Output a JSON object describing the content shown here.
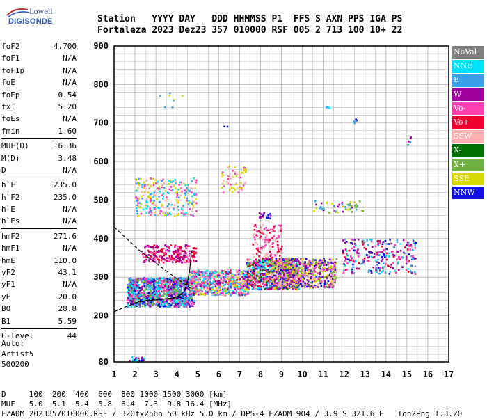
{
  "logo": {
    "top": "Lowell",
    "bottom": "DIGISONDE"
  },
  "header": {
    "line1": "Station   YYYY DAY   DDD HHMMSS P1  FFS S AXN PPS IGA PS",
    "line2": "Fortaleza 2023 Dez23 357 010000 RSF 005 2 713 100 10+ 22"
  },
  "params": {
    "group1": [
      {
        "name": "foF2",
        "value": "4.700"
      },
      {
        "name": "foF1",
        "value": "N/A"
      },
      {
        "name": "foF1p",
        "value": "N/A"
      },
      {
        "name": "foE",
        "value": "N/A"
      },
      {
        "name": "foEp",
        "value": "0.54"
      },
      {
        "name": "fxI",
        "value": "5.20"
      },
      {
        "name": "foEs",
        "value": "N/A"
      },
      {
        "name": "fmin",
        "value": "1.60"
      }
    ],
    "group2": [
      {
        "name": "MUF(D)",
        "value": "16.36"
      },
      {
        "name": "M(D)",
        "value": "3.48"
      },
      {
        "name": "D",
        "value": "N/A"
      }
    ],
    "group3": [
      {
        "name": "h`F",
        "value": "235.0"
      },
      {
        "name": "h`F2",
        "value": "235.0"
      },
      {
        "name": "h`E",
        "value": "N/A"
      },
      {
        "name": "h`Es",
        "value": "N/A"
      }
    ],
    "group4": [
      {
        "name": "hmF2",
        "value": "271.6"
      },
      {
        "name": "hmF1",
        "value": "N/A"
      },
      {
        "name": "hmE",
        "value": "110.0"
      },
      {
        "name": "yF2",
        "value": "43.1"
      },
      {
        "name": "yF1",
        "value": "N/A"
      },
      {
        "name": "yE",
        "value": "20.0"
      },
      {
        "name": "B0",
        "value": "28.8"
      },
      {
        "name": "B1",
        "value": "5.59"
      }
    ],
    "group5": [
      {
        "name": "C-level",
        "value": "44"
      }
    ]
  },
  "auto": {
    "line1": "Auto:",
    "line2": "Artist5",
    "line3": "500200"
  },
  "footer": {
    "line1": "D     100  200  400  600  800 1000 1500 3000 [km]",
    "line2": "MUF   5.0  5.1  5.4  5.8  6.4  7.3  9.8 16.4 [MHz]",
    "line3": "FZA0M_2023357010000.RSF / 320fx256h 50 kHz 5.0 km / DPS-4 FZA0M 904 / 3.9 S 321.6 E   Ion2Png 1.3.20"
  },
  "legend": [
    {
      "label": "NoVal",
      "color": "#808080"
    },
    {
      "label": "NNE",
      "color": "#00e0ff"
    },
    {
      "label": "E",
      "color": "#3aa0e8"
    },
    {
      "label": "W",
      "color": "#a000a0"
    },
    {
      "label": "Vo-",
      "color": "#ff40b0"
    },
    {
      "label": "Vo+",
      "color": "#f00030"
    },
    {
      "label": "SSW",
      "color": "#ffb0b0"
    },
    {
      "label": "X-",
      "color": "#007000"
    },
    {
      "label": "X+",
      "color": "#70b040"
    },
    {
      "label": "SSE",
      "color": "#d8d800"
    },
    {
      "label": "NNW",
      "color": "#1010e0"
    }
  ],
  "chart_data": {
    "type": "scatter",
    "xlim": [
      1,
      17
    ],
    "ylim": [
      80,
      900
    ],
    "x_ticks": [
      "1",
      "2",
      "3",
      "4",
      "5",
      "6",
      "7",
      "8",
      "9",
      "10",
      "11",
      "12",
      "13",
      "14",
      "15",
      "16",
      "17"
    ],
    "y_ticks": [
      {
        "v": 900,
        "t": "900"
      },
      {
        "v": 800,
        "t": "800"
      },
      {
        "v": 700,
        "t": "700"
      },
      {
        "v": 600,
        "t": "600"
      },
      {
        "v": 500,
        "t": "500"
      },
      {
        "v": 400,
        "t": "400"
      },
      {
        "v": 300,
        "t": "300"
      },
      {
        "v": 200,
        "t": "200"
      },
      {
        "v": 80,
        "t": "80"
      }
    ],
    "grid": true,
    "clusters": [
      {
        "x": [
          1.7,
          2.4
        ],
        "y": [
          81,
          96
        ],
        "n": 25,
        "colors": [
          "#a000a0",
          "#1010e0",
          "#00e0ff"
        ]
      },
      {
        "x": [
          1.6,
          4.8
        ],
        "y": [
          225,
          300
        ],
        "n": 1100,
        "colors": [
          "#3aa0e8",
          "#00e0ff",
          "#a000a0",
          "#ff40b0",
          "#1010e0",
          "#70b040"
        ]
      },
      {
        "x": [
          2.3,
          4.9
        ],
        "y": [
          340,
          385
        ],
        "n": 220,
        "colors": [
          "#a000a0",
          "#ff40b0",
          "#f00030"
        ]
      },
      {
        "x": [
          2.0,
          4.9
        ],
        "y": [
          460,
          560
        ],
        "n": 260,
        "colors": [
          "#3aa0e8",
          "#00e0ff",
          "#d8d800",
          "#ffb0b0",
          "#ff40b0"
        ]
      },
      {
        "x": [
          4.6,
          7.4
        ],
        "y": [
          255,
          320
        ],
        "n": 650,
        "colors": [
          "#ffb0b0",
          "#ff40b0",
          "#d8d800",
          "#3aa0e8",
          "#a000a0",
          "#00e0ff"
        ]
      },
      {
        "x": [
          7.3,
          9.8
        ],
        "y": [
          270,
          350
        ],
        "n": 700,
        "colors": [
          "#f00030",
          "#ff40b0",
          "#d8d800",
          "#ffb0b0",
          "#1010e0",
          "#a000a0",
          "#007000",
          "#00e0ff"
        ]
      },
      {
        "x": [
          8.5,
          11.6
        ],
        "y": [
          275,
          350
        ],
        "n": 650,
        "colors": [
          "#d8d800",
          "#ffb0b0",
          "#1010e0",
          "#ff40b0",
          "#70b040",
          "#a000a0"
        ]
      },
      {
        "x": [
          7.6,
          9.0
        ],
        "y": [
          350,
          440
        ],
        "n": 120,
        "colors": [
          "#ff40b0",
          "#f00030",
          "#ffb0b0"
        ]
      },
      {
        "x": [
          6.1,
          7.3
        ],
        "y": [
          520,
          590
        ],
        "n": 60,
        "colors": [
          "#d8d800",
          "#ffb0b0",
          "#ff40b0"
        ]
      },
      {
        "x": [
          7.9,
          8.5
        ],
        "y": [
          455,
          470
        ],
        "n": 18,
        "colors": [
          "#1010e0",
          "#a000a0"
        ]
      },
      {
        "x": [
          10.5,
          12.9
        ],
        "y": [
          470,
          500
        ],
        "n": 50,
        "colors": [
          "#70b040",
          "#3aa0e8",
          "#d8d800",
          "#a000a0"
        ]
      },
      {
        "x": [
          11.9,
          15.4
        ],
        "y": [
          310,
          400
        ],
        "n": 260,
        "colors": [
          "#3aa0e8",
          "#a000a0",
          "#00e0ff",
          "#f00030",
          "#ff40b0",
          "#1010e0"
        ]
      },
      {
        "x": [
          3.0,
          4.6
        ],
        "y": [
          740,
          780
        ],
        "n": 8,
        "colors": [
          "#d8d800",
          "#3aa0e8"
        ]
      },
      {
        "x": [
          10.9,
          11.6
        ],
        "y": [
          735,
          745
        ],
        "n": 4,
        "colors": [
          "#00e0ff",
          "#3aa0e8"
        ]
      },
      {
        "x": [
          12.4,
          12.6
        ],
        "y": [
          700,
          715
        ],
        "n": 5,
        "colors": [
          "#3aa0e8",
          "#1010e0"
        ]
      },
      {
        "x": [
          15.0,
          15.2
        ],
        "y": [
          645,
          665
        ],
        "n": 5,
        "colors": [
          "#a000a0",
          "#3aa0e8"
        ]
      },
      {
        "x": [
          6.2,
          6.4
        ],
        "y": [
          690,
          700
        ],
        "n": 2,
        "colors": [
          "#1010e0"
        ]
      }
    ],
    "curves": [
      {
        "dash": true,
        "points": [
          [
            1.0,
            430
          ],
          [
            1.6,
            400
          ],
          [
            2.2,
            370
          ],
          [
            2.8,
            345
          ],
          [
            3.4,
            320
          ],
          [
            3.9,
            300
          ],
          [
            4.3,
            285
          ],
          [
            4.7,
            270
          ]
        ]
      },
      {
        "dash": true,
        "points": [
          [
            1.0,
            210
          ],
          [
            1.5,
            222
          ],
          [
            2.0,
            232
          ],
          [
            2.6,
            240
          ],
          [
            3.2,
            243
          ],
          [
            3.8,
            245
          ],
          [
            4.2,
            248
          ]
        ]
      },
      {
        "dash": false,
        "points": [
          [
            1.9,
            232
          ],
          [
            2.2,
            236
          ],
          [
            2.6,
            239
          ],
          [
            3.0,
            241
          ],
          [
            3.4,
            243
          ],
          [
            3.8,
            246
          ],
          [
            4.1,
            251
          ],
          [
            4.35,
            262
          ],
          [
            4.5,
            285
          ],
          [
            4.62,
            320
          ],
          [
            4.7,
            370
          ]
        ]
      }
    ]
  }
}
